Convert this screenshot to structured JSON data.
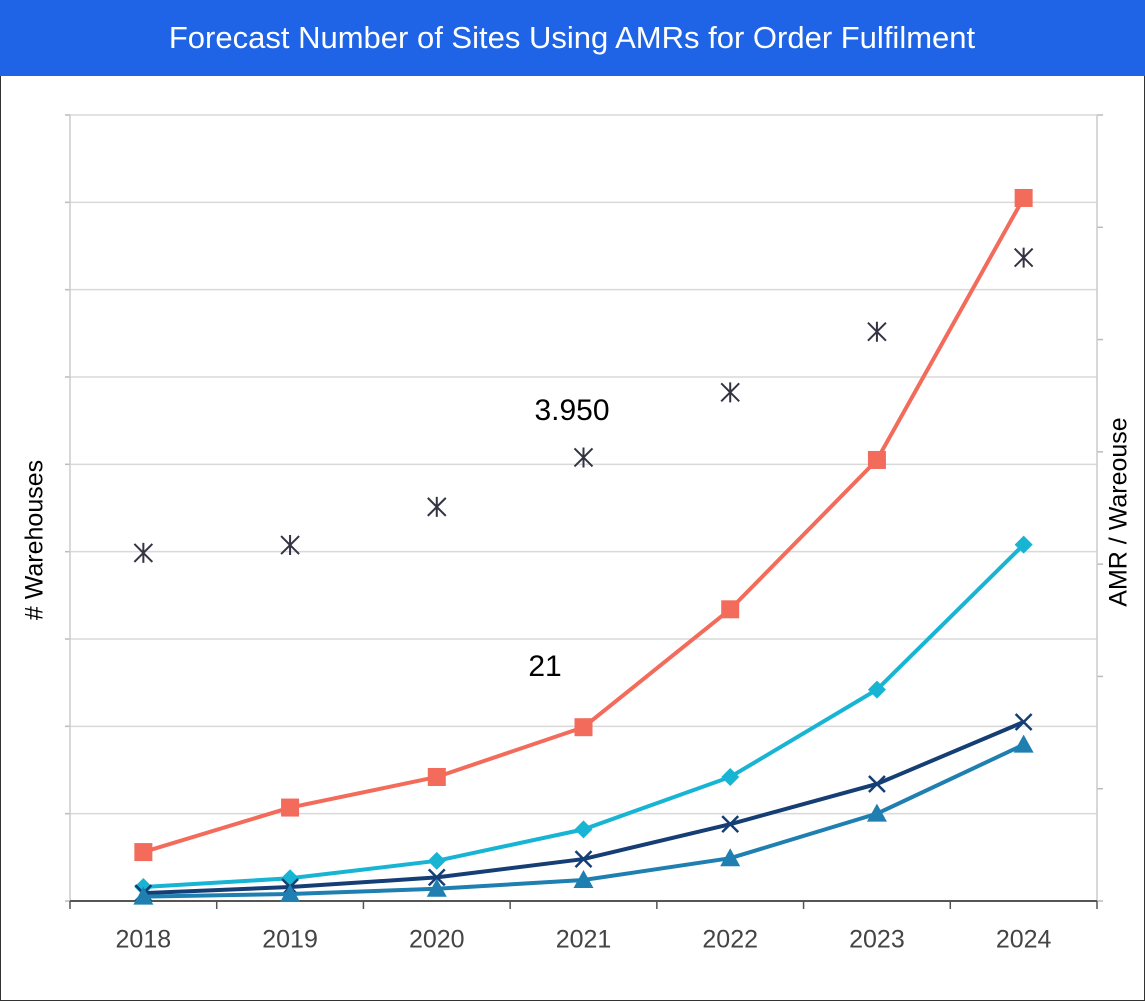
{
  "chart_data": {
    "type": "line",
    "title": "Forecast Number of Sites Using AMRs for Order Fulfilment",
    "y_label": "# Warehouses",
    "y2_label": "AMR / Wareouse",
    "annotations": [
      "3.950",
      "21"
    ],
    "categories": [
      "2018",
      "2019",
      "2020",
      "2021",
      "2022",
      "2023",
      "2024"
    ],
    "ylim": [
      0,
      9
    ],
    "yticks": [
      0,
      1,
      2,
      3,
      4,
      5,
      6,
      7,
      8,
      9
    ],
    "y2lim": [
      0,
      7
    ],
    "y2ticks": [
      0,
      1,
      2,
      3,
      4,
      5,
      6,
      7
    ],
    "grid": true,
    "series": [
      {
        "color": "#f26b5b",
        "marker": "square",
        "values": [
          0.56,
          1.07,
          1.42,
          1.99,
          3.34,
          5.05,
          8.05
        ]
      },
      {
        "color": "#17b4d4",
        "marker": "diamond",
        "values": [
          0.16,
          0.26,
          0.46,
          0.82,
          1.42,
          2.42,
          4.08
        ]
      },
      {
        "color": "#153e75",
        "marker": "x",
        "values": [
          0.09,
          0.16,
          0.27,
          0.48,
          0.88,
          1.34,
          2.05
        ]
      },
      {
        "color": "#1f7fb0",
        "marker": "triangle",
        "values": [
          0.05,
          0.08,
          0.14,
          0.24,
          0.49,
          1.0,
          1.79
        ]
      },
      {
        "color": "#333344",
        "marker": "star",
        "axis": "y2",
        "line": false,
        "values": [
          3.1,
          3.17,
          3.51,
          3.95,
          4.53,
          5.07,
          5.73
        ]
      }
    ]
  }
}
